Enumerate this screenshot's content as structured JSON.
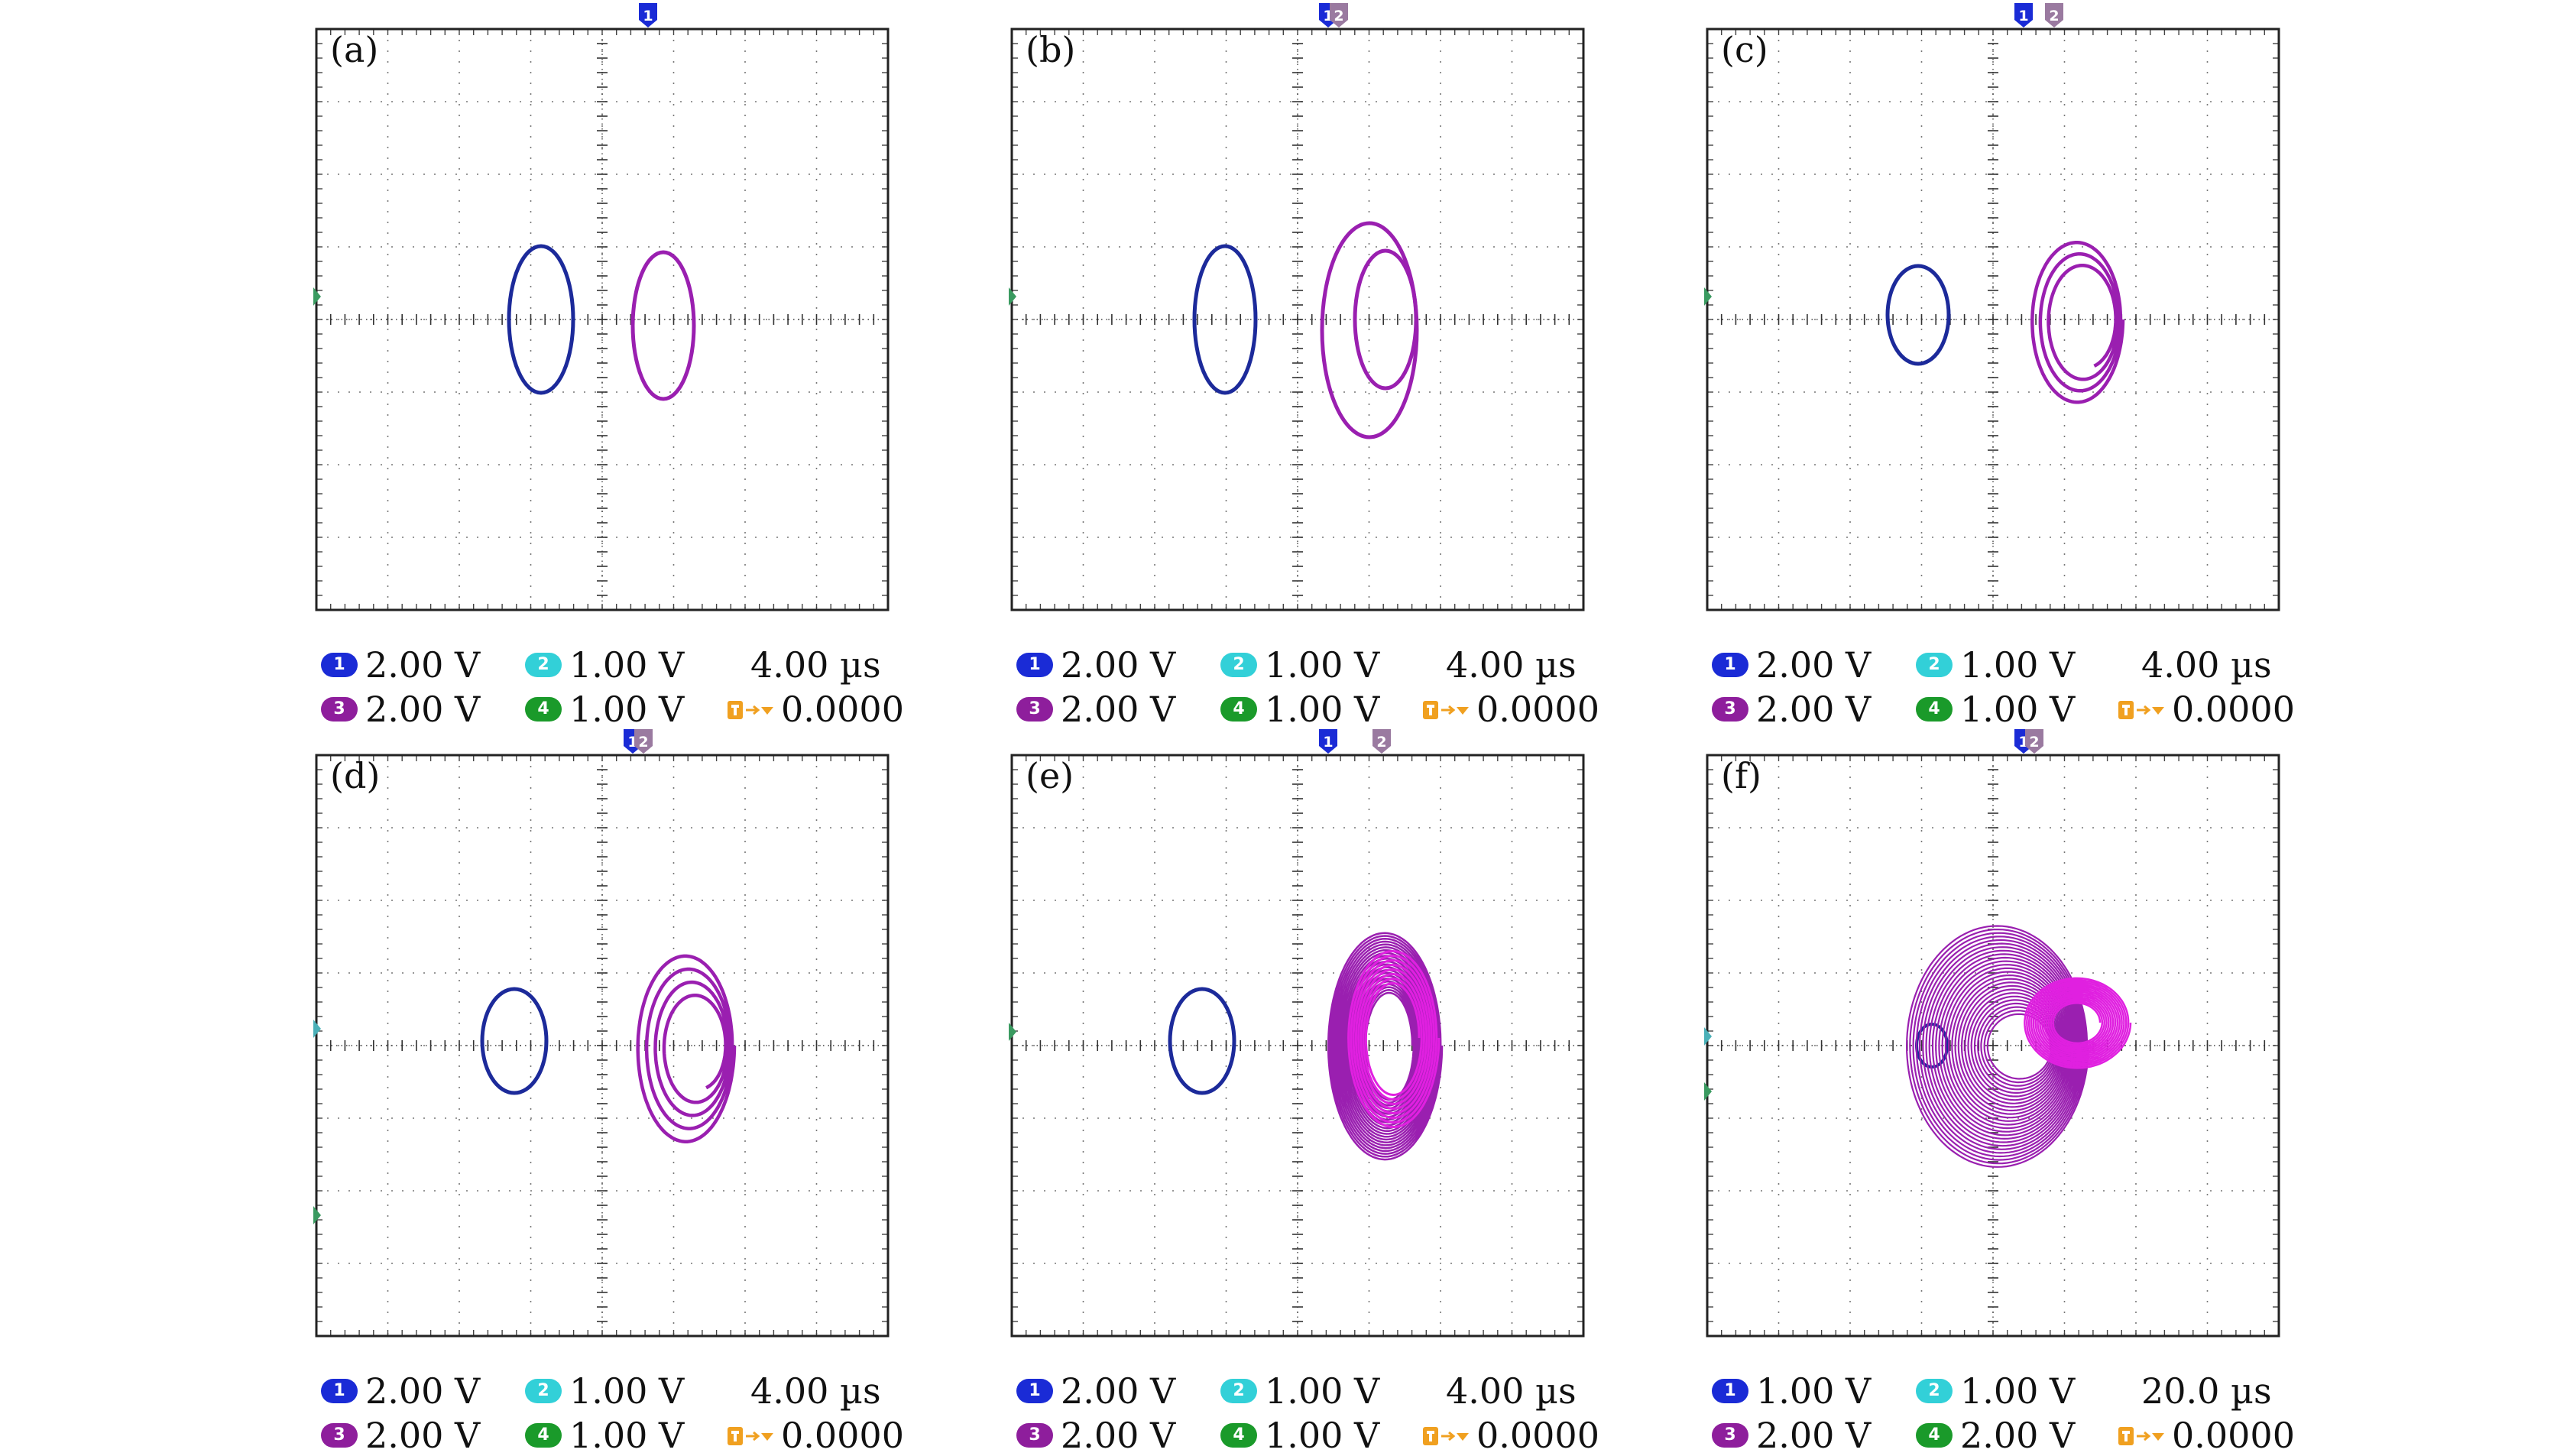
{
  "colors": {
    "ch1": "#1a2bd6",
    "ch2": "#32d0d8",
    "ch3": "#8e1e9c",
    "ch4": "#1a9a2a",
    "trace_blue": "#1c2a9a",
    "trace_purple": "#9a1fb0",
    "trace_magenta": "#e020e0",
    "trigger": "#f0a020",
    "grid": "#555555"
  },
  "panels": [
    {
      "id": "a",
      "label": "(a)",
      "readout": {
        "ch1": "2.00 V",
        "ch2": "1.00 V",
        "time": "4.00 µs",
        "ch3": "2.00 V",
        "ch4": "1.00 V",
        "trigger": "0.0000"
      },
      "badges": [
        "1"
      ]
    },
    {
      "id": "b",
      "label": "(b)",
      "readout": {
        "ch1": "2.00 V",
        "ch2": "1.00 V",
        "time": "4.00 µs",
        "ch3": "2.00 V",
        "ch4": "1.00 V",
        "trigger": "0.0000"
      },
      "badges": [
        "1",
        "2"
      ]
    },
    {
      "id": "c",
      "label": "(c)",
      "readout": {
        "ch1": "2.00 V",
        "ch2": "1.00 V",
        "time": "4.00 µs",
        "ch3": "2.00 V",
        "ch4": "1.00 V",
        "trigger": "0.0000"
      },
      "badges": [
        "1",
        "2"
      ]
    },
    {
      "id": "d",
      "label": "(d)",
      "readout": {
        "ch1": "2.00 V",
        "ch2": "1.00 V",
        "time": "4.00 µs",
        "ch3": "2.00 V",
        "ch4": "1.00 V",
        "trigger": "0.0000"
      },
      "badges": [
        "1",
        "2"
      ]
    },
    {
      "id": "e",
      "label": "(e)",
      "readout": {
        "ch1": "2.00 V",
        "ch2": "1.00 V",
        "time": "4.00 µs",
        "ch3": "2.00 V",
        "ch4": "1.00 V",
        "trigger": "0.0000"
      },
      "badges": [
        "1",
        "2"
      ]
    },
    {
      "id": "f",
      "label": "(f)",
      "readout": {
        "ch1": "1.00 V",
        "ch2": "1.00 V",
        "time": "20.0 µs",
        "ch3": "2.00 V",
        "ch4": "2.00 V",
        "trigger": "0.0000"
      },
      "badges": [
        "1",
        "2"
      ]
    }
  ],
  "channel_digits": {
    "c1": "1",
    "c2": "2",
    "c3": "3",
    "c4": "4"
  }
}
